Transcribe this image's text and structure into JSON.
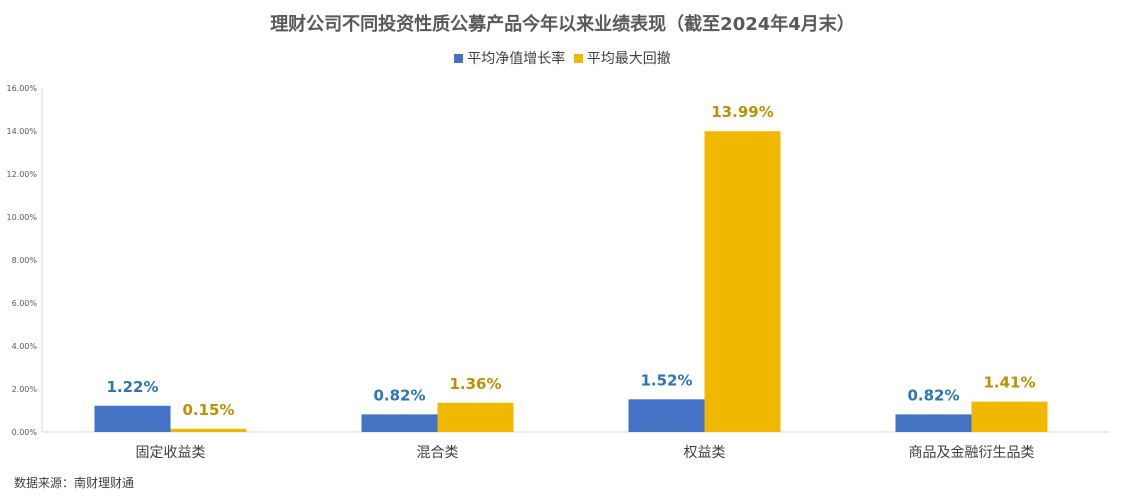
{
  "chart_data": {
    "type": "bar",
    "title": "理财公司不同投资性质公募产品今年以来业绩表现（截至2024年4月末）",
    "categories": [
      "固定收益类",
      "混合类",
      "权益类",
      "商品及金融衍生品类"
    ],
    "series": [
      {
        "name": "平均净值增长率",
        "values": [
          1.22,
          0.82,
          1.52,
          0.82
        ],
        "labels": [
          "1.22%",
          "0.82%",
          "1.52%",
          "0.82%"
        ],
        "color": "#4472C4",
        "label_color": "#2E75B6"
      },
      {
        "name": "平均最大回撤",
        "values": [
          0.15,
          1.36,
          13.99,
          1.41
        ],
        "labels": [
          "0.15%",
          "1.36%",
          "13.99%",
          "1.41%"
        ],
        "color": "#F0B800",
        "label_color": "#BF9000"
      }
    ],
    "ylim": [
      0,
      16
    ],
    "yticks": [
      0,
      2,
      4,
      6,
      8,
      10,
      12,
      14,
      16
    ],
    "ytick_labels": [
      "0.00%",
      "2.00%",
      "4.00%",
      "6.00%",
      "8.00%",
      "10.00%",
      "12.00%",
      "14.00%",
      "16.00%"
    ],
    "legend": "top",
    "grid": false
  },
  "source": "数据来源：南财理财通"
}
